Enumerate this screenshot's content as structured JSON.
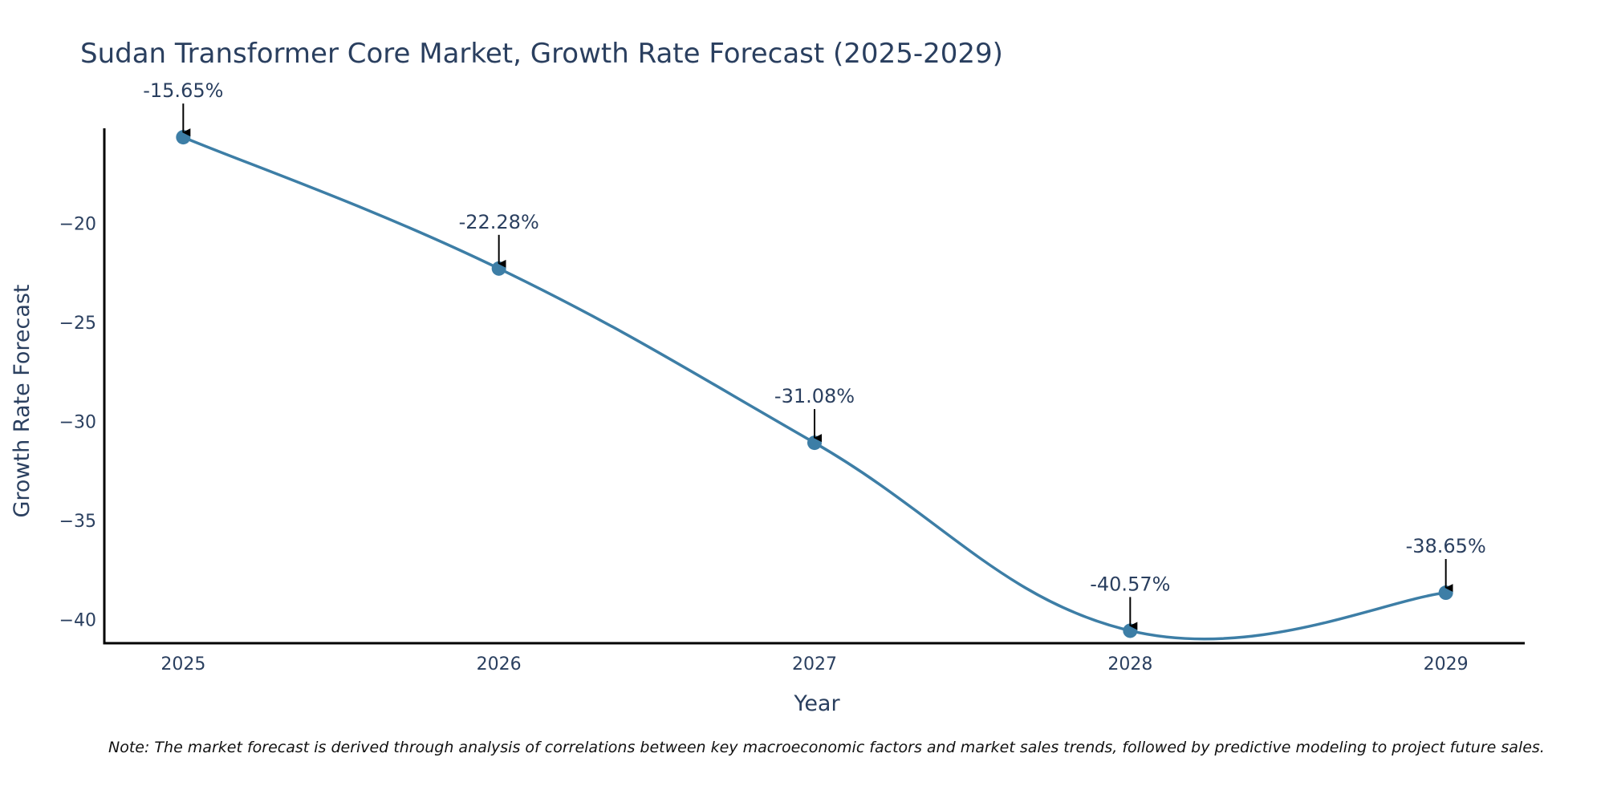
{
  "chart_data": {
    "type": "line",
    "title": "Sudan Transformer Core Market, Growth Rate Forecast (2025-2029)",
    "xlabel": "Year",
    "ylabel": "Growth Rate Forecast",
    "categories": [
      "2025",
      "2026",
      "2027",
      "2028",
      "2029"
    ],
    "x": [
      2025,
      2026,
      2027,
      2028,
      2029
    ],
    "series": [
      {
        "name": "Growth Rate Forecast",
        "values": [
          -15.65,
          -22.28,
          -31.08,
          -40.57,
          -38.65
        ],
        "color": "#3d7ea6"
      }
    ],
    "annotations": [
      "-15.65%",
      "-22.28%",
      "-31.08%",
      "-40.57%",
      "-38.65%"
    ],
    "y_ticks": [
      -20,
      -25,
      -30,
      -35,
      -40
    ],
    "y_tick_labels": [
      "−20",
      "−25",
      "−30",
      "−35",
      "−40"
    ],
    "ylim": [
      -41.2,
      -15.2
    ],
    "xlim": [
      2024.75,
      2029.25
    ],
    "grid": false,
    "legend": "none",
    "line_shape": "spline"
  },
  "note": "Note: The market forecast is derived through analysis of correlations between key macroeconomic factors and market sales trends, followed by predictive modeling to project future sales."
}
